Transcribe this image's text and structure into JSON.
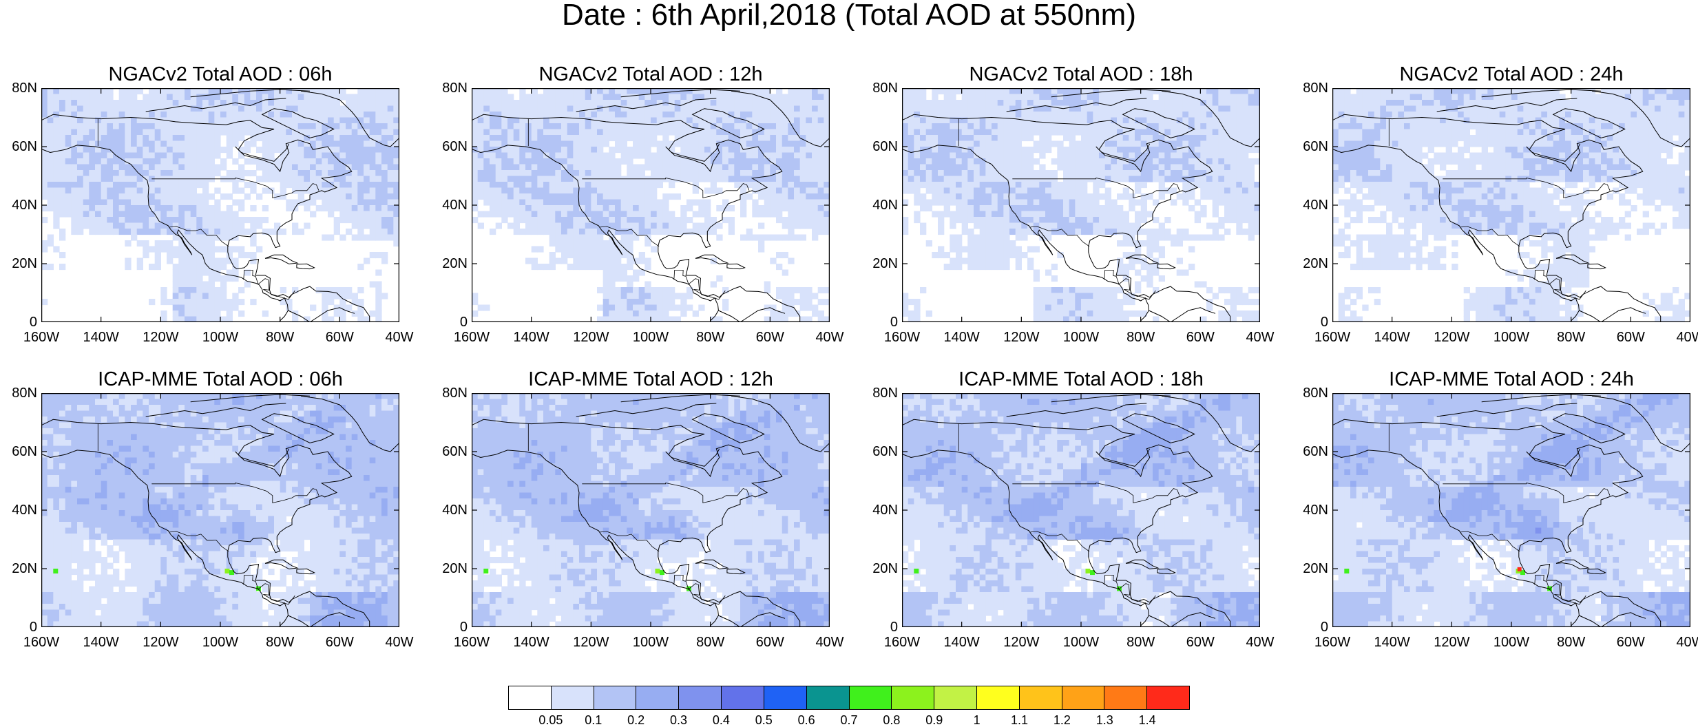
{
  "title": "Date : 6th April,2018 (Total AOD at 550nm)",
  "panels": [
    {
      "title": "NGACv2 Total AOD : 06h"
    },
    {
      "title": "NGACv2 Total AOD : 12h"
    },
    {
      "title": "NGACv2 Total AOD : 18h"
    },
    {
      "title": "NGACv2 Total AOD : 24h"
    },
    {
      "title": "ICAP-MME Total AOD : 06h"
    },
    {
      "title": "ICAP-MME Total AOD : 12h"
    },
    {
      "title": "ICAP-MME Total AOD : 18h"
    },
    {
      "title": "ICAP-MME Total AOD : 24h"
    }
  ],
  "lat_ticks": [
    "80N",
    "60N",
    "40N",
    "20N",
    "0"
  ],
  "lon_ticks": [
    "160W",
    "140W",
    "120W",
    "100W",
    "80W",
    "60W",
    "40W"
  ],
  "colorbar": {
    "labels": [
      "0.05",
      "0.1",
      "0.2",
      "0.3",
      "0.4",
      "0.5",
      "0.6",
      "0.7",
      "0.8",
      "0.9",
      "1",
      "1.1",
      "1.2",
      "1.3",
      "1.4"
    ],
    "colors": [
      "#ffffff",
      "#d8e2fb",
      "#b3c4f5",
      "#97adf2",
      "#7f92ee",
      "#6272ea",
      "#1f62f5",
      "#0a9490",
      "#40f01c",
      "#8cf21d",
      "#c2f245",
      "#ffff1e",
      "#ffc31a",
      "#ffa217",
      "#ff7a16",
      "#ff2a1a"
    ]
  }
}
